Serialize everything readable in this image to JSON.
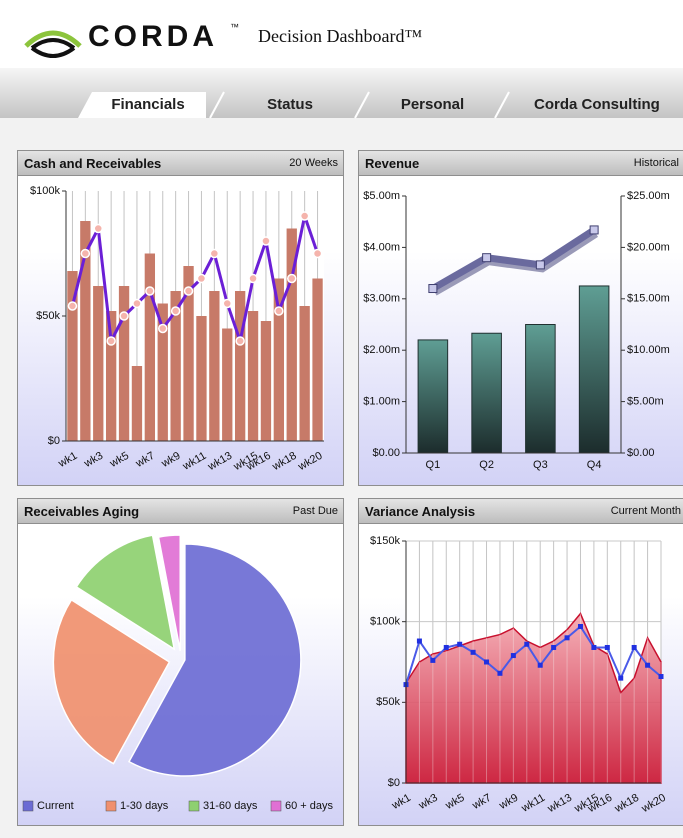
{
  "header": {
    "logo": "CORDA",
    "logo_mark": "™",
    "title": "Decision Dashboard™"
  },
  "tabs": [
    "Financials",
    "Status",
    "Personal",
    "Corda Consulting"
  ],
  "chart_data": [
    {
      "type": "combo",
      "title": "Cash and Receivables",
      "subtitle": "20 Weeks",
      "categories": [
        "wk1",
        null,
        "wk3",
        null,
        "wk5",
        null,
        "wk7",
        null,
        "wk9",
        null,
        "wk11",
        null,
        "wk13",
        null,
        "wk15",
        "wk16",
        null,
        "wk18",
        null,
        "wk20"
      ],
      "series": [
        {
          "type": "bar",
          "color": "#c77a68",
          "values": [
            68000,
            88000,
            62000,
            52000,
            62000,
            30000,
            75000,
            55000,
            60000,
            70000,
            50000,
            60000,
            45000,
            60000,
            52000,
            48000,
            65000,
            85000,
            54000,
            65000
          ]
        },
        {
          "type": "line",
          "color": "#6b1fd6",
          "marker": "circle",
          "marker_color": "#f5b4ac",
          "values": [
            54000,
            75000,
            85000,
            40000,
            50000,
            55000,
            60000,
            45000,
            52000,
            60000,
            65000,
            75000,
            55000,
            40000,
            65000,
            80000,
            52000,
            65000,
            90000,
            75000
          ]
        }
      ],
      "ylim": [
        0,
        100000
      ],
      "yticks": [
        {
          "value": 0,
          "label": "$0"
        },
        {
          "value": 50000,
          "label": "$50k"
        },
        {
          "value": 100000,
          "label": "$100k"
        }
      ],
      "grid": "x"
    },
    {
      "type": "combo",
      "title": "Revenue",
      "subtitle": "Historical",
      "categories": [
        "Q1",
        "Q2",
        "Q3",
        "Q4"
      ],
      "series": [
        {
          "type": "bar",
          "color": "#5f9e94",
          "values": [
            2200000,
            2330000,
            2500000,
            3250000
          ]
        },
        {
          "type": "line",
          "axis": "y2",
          "color": "#6a6a9e",
          "marker": "square",
          "marker_color": "#c8c8ea",
          "values": [
            16000000,
            19000000,
            18300000,
            21700000
          ]
        }
      ],
      "ylim": [
        0,
        5000000
      ],
      "yticks": [
        {
          "value": 0,
          "label": "$0.00"
        },
        {
          "value": 1000000,
          "label": "$1.00m"
        },
        {
          "value": 2000000,
          "label": "$2.00m"
        },
        {
          "value": 3000000,
          "label": "$3.00m"
        },
        {
          "value": 4000000,
          "label": "$4.00m"
        },
        {
          "value": 5000000,
          "label": "$5.00m"
        }
      ],
      "y2lim": [
        0,
        25000000
      ],
      "y2ticks": [
        {
          "value": 0,
          "label": "$0.00"
        },
        {
          "value": 5000000,
          "label": "$5.00m"
        },
        {
          "value": 10000000,
          "label": "$10.00m"
        },
        {
          "value": 15000000,
          "label": "$15.00m"
        },
        {
          "value": 20000000,
          "label": "$20.00m"
        },
        {
          "value": 25000000,
          "label": "$25.00m"
        }
      ],
      "grid": false
    },
    {
      "type": "pie",
      "title": "Receivables Aging",
      "subtitle": "Past Due",
      "categories": [
        "Current",
        "1-30 days",
        "31-60 days",
        "60 + days"
      ],
      "values": [
        58,
        26,
        13,
        3
      ],
      "colors": [
        "#6c6cd4",
        "#f0906e",
        "#8ed070",
        "#e070d4"
      ],
      "legend": "bottom"
    },
    {
      "type": "area",
      "title": "Variance Analysis",
      "subtitle": "Current Month",
      "categories": [
        "wk1",
        null,
        "wk3",
        null,
        "wk5",
        null,
        "wk7",
        null,
        "wk9",
        null,
        "wk11",
        null,
        "wk13",
        null,
        "wk15",
        "wk16",
        null,
        "wk18",
        null,
        "wk20"
      ],
      "series": [
        {
          "type": "area",
          "color": "#c8102e",
          "values": [
            62000,
            75000,
            80000,
            82000,
            85000,
            88000,
            90000,
            92000,
            96000,
            88000,
            84000,
            88000,
            95000,
            105000,
            85000,
            80000,
            56000,
            65000,
            90000,
            75000
          ]
        },
        {
          "type": "line",
          "color": "#4a5ae8",
          "marker": "square",
          "marker_color": "#2030e0",
          "values": [
            61000,
            88000,
            76000,
            84000,
            86000,
            81000,
            75000,
            68000,
            79000,
            86000,
            73000,
            84000,
            90000,
            97000,
            84000,
            84000,
            65000,
            84000,
            73000,
            66000
          ]
        }
      ],
      "ylim": [
        0,
        150000
      ],
      "yticks": [
        {
          "value": 0,
          "label": "$0"
        },
        {
          "value": 50000,
          "label": "$50k"
        },
        {
          "value": 100000,
          "label": "$100k"
        },
        {
          "value": 150000,
          "label": "$150k"
        }
      ],
      "grid": "both"
    }
  ]
}
